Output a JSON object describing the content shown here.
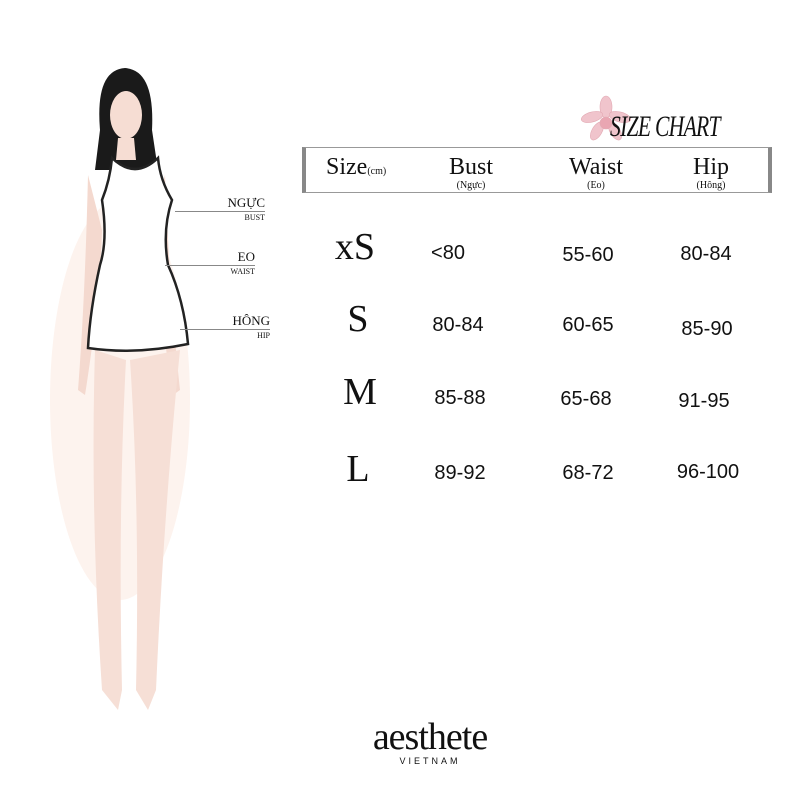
{
  "title": "SIZE CHART",
  "flower_icon": "orchid-icon",
  "measure_labels": [
    {
      "vi": "NGỰC",
      "en": "BUST"
    },
    {
      "vi": "EO",
      "en": "WAIST"
    },
    {
      "vi": "HÔNG",
      "en": "HIP"
    }
  ],
  "header": {
    "size": "Size",
    "size_unit": "(cm)",
    "bust": "Bust",
    "bust_vi": "(Ngực)",
    "waist": "Waist",
    "waist_vi": "(Eo)",
    "hip": "Hip",
    "hip_vi": "(Hông)"
  },
  "rows": [
    {
      "size": "xS",
      "bust": "<80",
      "waist": "55-60",
      "hip": "80-84"
    },
    {
      "size": "S",
      "bust": "80-84",
      "waist": "60-65",
      "hip": "85-90"
    },
    {
      "size": "M",
      "bust": "85-88",
      "waist": "65-68",
      "hip": "91-95"
    },
    {
      "size": "L",
      "bust": "89-92",
      "waist": "68-72",
      "hip": "96-100"
    }
  ],
  "brand": {
    "name": "aesthete",
    "sub": "VIETNAM"
  },
  "colors": {
    "flower": "#f0c4cc",
    "border": "#888888"
  }
}
